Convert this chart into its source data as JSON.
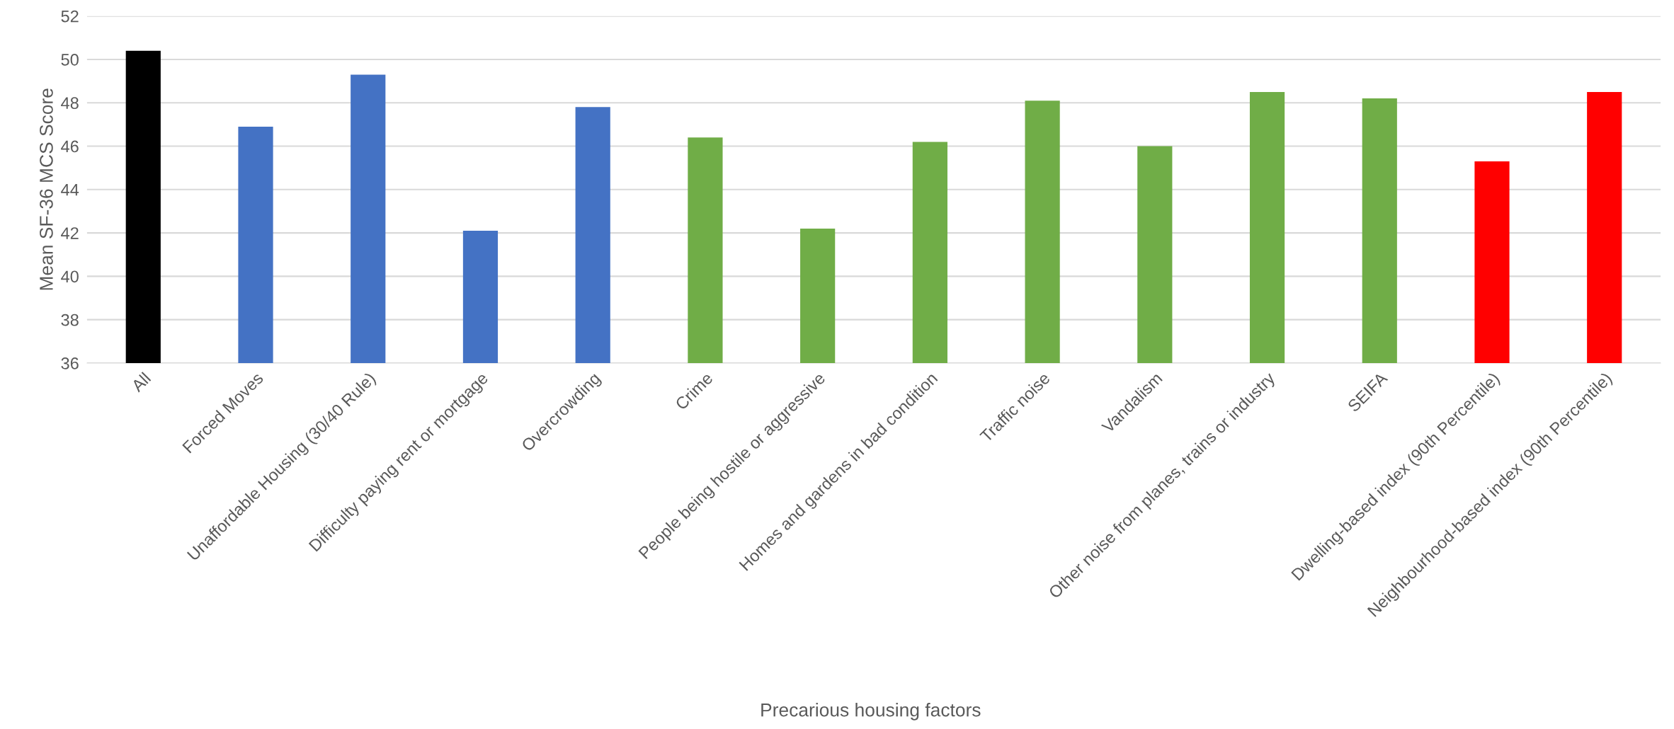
{
  "chart_data": {
    "type": "bar",
    "xlabel": "Precarious housing factors",
    "ylabel": "Mean SF-36 MCS Score",
    "categories": [
      "All",
      "Forced Moves",
      "Unaffordable Housing (30/40 Rule)",
      "Difficulty paying rent or mortgage",
      "Overcrowding",
      "Crime",
      "People being hostile or aggressive",
      "Homes and gardens in bad condition",
      "Traffic noise",
      "Vandalism",
      "Other noise from planes, trains or industry",
      "SEIFA",
      "Dwelling-based index (90th Percentile)",
      "Neighbourhood-based index (90th Percentile)"
    ],
    "values": [
      50.4,
      46.9,
      49.3,
      42.1,
      47.8,
      46.4,
      42.2,
      46.2,
      48.1,
      46.0,
      48.5,
      48.2,
      45.3,
      48.5
    ],
    "colors": [
      "#000000",
      "#4472c4",
      "#4472c4",
      "#4472c4",
      "#4472c4",
      "#70ad47",
      "#70ad47",
      "#70ad47",
      "#70ad47",
      "#70ad47",
      "#70ad47",
      "#70ad47",
      "#ff0000",
      "#ff0000"
    ],
    "ylim": [
      36,
      52
    ],
    "yticks": [
      36,
      38,
      40,
      42,
      44,
      46,
      48,
      50,
      52
    ],
    "grid": "y",
    "legend": false
  }
}
